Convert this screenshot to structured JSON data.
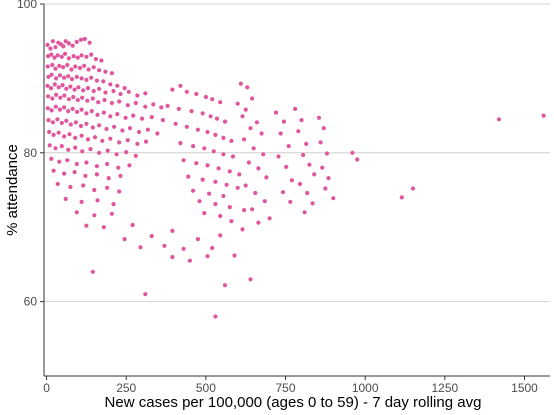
{
  "chart_data": {
    "type": "scatter",
    "xlabel": "New cases per 100,000 (ages 0 to 59) - 7 day rolling avg",
    "ylabel": "% attendance",
    "xlim": [
      -8,
      1580
    ],
    "ylim": [
      50,
      100
    ],
    "x_ticks": [
      0,
      250,
      500,
      750,
      1000,
      1250,
      1500
    ],
    "y_ticks": [
      60,
      80,
      100
    ],
    "grid": "horizontal major lines only",
    "legend": "none",
    "colors": {
      "points": "#e0559b",
      "grid": "#c8c8c8",
      "axis": "#333333",
      "background": "#ffffff"
    },
    "series": [
      {
        "points": [
          [
            3,
            94.5
          ],
          [
            12,
            94
          ],
          [
            20,
            95
          ],
          [
            28,
            94.2
          ],
          [
            37,
            94.8
          ],
          [
            45,
            94.6
          ],
          [
            53,
            94.3
          ],
          [
            60,
            95
          ],
          [
            70,
            94.7
          ],
          [
            82,
            94.4
          ],
          [
            95,
            94.9
          ],
          [
            108,
            95.2
          ],
          [
            120,
            95.3
          ],
          [
            135,
            94.8
          ],
          [
            5,
            93
          ],
          [
            15,
            93.2
          ],
          [
            25,
            92.8
          ],
          [
            35,
            93.1
          ],
          [
            48,
            92.9
          ],
          [
            58,
            93.3
          ],
          [
            70,
            92.7
          ],
          [
            85,
            93
          ],
          [
            98,
            92.8
          ],
          [
            110,
            93.1
          ],
          [
            125,
            92.9
          ],
          [
            140,
            93.2
          ],
          [
            155,
            92.6
          ],
          [
            172,
            92.4
          ],
          [
            4,
            91.6
          ],
          [
            18,
            91.8
          ],
          [
            28,
            91.3
          ],
          [
            40,
            91.7
          ],
          [
            52,
            91.5
          ],
          [
            65,
            91.8
          ],
          [
            78,
            91.2
          ],
          [
            90,
            91.6
          ],
          [
            105,
            91.4
          ],
          [
            118,
            91.7
          ],
          [
            132,
            91.2
          ],
          [
            148,
            91.5
          ],
          [
            165,
            91.1
          ],
          [
            185,
            90.9
          ],
          [
            205,
            90.7
          ],
          [
            6,
            90.2
          ],
          [
            16,
            90.5
          ],
          [
            30,
            90
          ],
          [
            42,
            90.4
          ],
          [
            55,
            90.1
          ],
          [
            68,
            90.3
          ],
          [
            80,
            89.9
          ],
          [
            95,
            90.2
          ],
          [
            110,
            90
          ],
          [
            125,
            89.8
          ],
          [
            140,
            90.1
          ],
          [
            158,
            89.7
          ],
          [
            178,
            89.6
          ],
          [
            200,
            89.2
          ],
          [
            222,
            89
          ],
          [
            245,
            88.7
          ],
          [
            3,
            89
          ],
          [
            14,
            88.7
          ],
          [
            26,
            89.2
          ],
          [
            38,
            88.8
          ],
          [
            50,
            89.1
          ],
          [
            62,
            88.6
          ],
          [
            75,
            88.9
          ],
          [
            88,
            88.5
          ],
          [
            100,
            88.8
          ],
          [
            115,
            88.4
          ],
          [
            130,
            88.7
          ],
          [
            148,
            88.3
          ],
          [
            165,
            88.6
          ],
          [
            185,
            88.1
          ],
          [
            210,
            88.3
          ],
          [
            232,
            87.9
          ],
          [
            258,
            88.2
          ],
          [
            285,
            87.7
          ],
          [
            310,
            88
          ],
          [
            5,
            87.6
          ],
          [
            18,
            87.3
          ],
          [
            30,
            87.8
          ],
          [
            43,
            87.4
          ],
          [
            56,
            87.7
          ],
          [
            70,
            87.2
          ],
          [
            84,
            87.5
          ],
          [
            98,
            87.1
          ],
          [
            112,
            87.4
          ],
          [
            128,
            87
          ],
          [
            145,
            87.3
          ],
          [
            162,
            86.8
          ],
          [
            182,
            87.1
          ],
          [
            205,
            86.7
          ],
          [
            228,
            86.9
          ],
          [
            255,
            86.4
          ],
          [
            280,
            86.7
          ],
          [
            310,
            86.2
          ],
          [
            335,
            86.5
          ],
          [
            360,
            86.1
          ],
          [
            4,
            86
          ],
          [
            16,
            85.7
          ],
          [
            29,
            86.2
          ],
          [
            42,
            85.8
          ],
          [
            55,
            86.1
          ],
          [
            68,
            85.6
          ],
          [
            82,
            85.9
          ],
          [
            96,
            85.5
          ],
          [
            110,
            85.8
          ],
          [
            125,
            85.3
          ],
          [
            142,
            85.6
          ],
          [
            160,
            85.1
          ],
          [
            180,
            85.4
          ],
          [
            200,
            84.9
          ],
          [
            222,
            85.2
          ],
          [
            248,
            84.7
          ],
          [
            272,
            85
          ],
          [
            300,
            84.6
          ],
          [
            330,
            84.8
          ],
          [
            365,
            84.4
          ],
          [
            6,
            84.4
          ],
          [
            20,
            84.1
          ],
          [
            34,
            84.5
          ],
          [
            48,
            84
          ],
          [
            62,
            84.3
          ],
          [
            76,
            83.8
          ],
          [
            92,
            84.1
          ],
          [
            108,
            83.6
          ],
          [
            125,
            83.9
          ],
          [
            145,
            83.4
          ],
          [
            165,
            83.7
          ],
          [
            188,
            83.2
          ],
          [
            212,
            83.5
          ],
          [
            238,
            83
          ],
          [
            262,
            83.3
          ],
          [
            290,
            82.8
          ],
          [
            318,
            83.1
          ],
          [
            348,
            82.6
          ],
          [
            8,
            82.8
          ],
          [
            22,
            82.4
          ],
          [
            38,
            82.7
          ],
          [
            55,
            82.2
          ],
          [
            72,
            82.5
          ],
          [
            90,
            82
          ],
          [
            110,
            82.3
          ],
          [
            130,
            81.8
          ],
          [
            152,
            82.1
          ],
          [
            175,
            81.6
          ],
          [
            200,
            81.9
          ],
          [
            228,
            81.4
          ],
          [
            255,
            81.7
          ],
          [
            285,
            81.2
          ],
          [
            312,
            81.5
          ],
          [
            10,
            81
          ],
          [
            28,
            80.6
          ],
          [
            48,
            80.9
          ],
          [
            68,
            80.4
          ],
          [
            90,
            80.7
          ],
          [
            112,
            80.2
          ],
          [
            138,
            80.5
          ],
          [
            165,
            80
          ],
          [
            192,
            80.3
          ],
          [
            220,
            79.8
          ],
          [
            250,
            80.1
          ],
          [
            280,
            79.6
          ],
          [
            15,
            79.2
          ],
          [
            40,
            78.8
          ],
          [
            65,
            79
          ],
          [
            95,
            78.5
          ],
          [
            125,
            78.7
          ],
          [
            158,
            78.2
          ],
          [
            190,
            78.5
          ],
          [
            225,
            78
          ],
          [
            260,
            78.3
          ],
          [
            22,
            77.6
          ],
          [
            55,
            77.2
          ],
          [
            88,
            77.4
          ],
          [
            122,
            76.9
          ],
          [
            158,
            77.1
          ],
          [
            195,
            76.6
          ],
          [
            232,
            76.9
          ],
          [
            35,
            75.8
          ],
          [
            75,
            75.4
          ],
          [
            115,
            75.6
          ],
          [
            150,
            75
          ],
          [
            190,
            75.3
          ],
          [
            228,
            74.8
          ],
          [
            60,
            73.8
          ],
          [
            110,
            73.4
          ],
          [
            160,
            73.6
          ],
          [
            210,
            73.1
          ],
          [
            95,
            72
          ],
          [
            150,
            71.6
          ],
          [
            205,
            71.8
          ],
          [
            125,
            70.2
          ],
          [
            180,
            70
          ],
          [
            420,
            89
          ],
          [
            395,
            88.5
          ],
          [
            440,
            88.2
          ],
          [
            470,
            87.9
          ],
          [
            500,
            87.5
          ],
          [
            520,
            87.2
          ],
          [
            545,
            86.8
          ],
          [
            380,
            86.3
          ],
          [
            415,
            85.9
          ],
          [
            455,
            85.6
          ],
          [
            490,
            85.3
          ],
          [
            515,
            84.9
          ],
          [
            535,
            84.6
          ],
          [
            560,
            84.2
          ],
          [
            405,
            83.9
          ],
          [
            440,
            83.5
          ],
          [
            475,
            83.1
          ],
          [
            505,
            82.8
          ],
          [
            530,
            82.4
          ],
          [
            555,
            82
          ],
          [
            580,
            81.6
          ],
          [
            420,
            81.3
          ],
          [
            460,
            80.9
          ],
          [
            495,
            80.6
          ],
          [
            525,
            80.2
          ],
          [
            555,
            79.8
          ],
          [
            585,
            79.5
          ],
          [
            430,
            79
          ],
          [
            470,
            78.6
          ],
          [
            505,
            78.3
          ],
          [
            540,
            77.9
          ],
          [
            575,
            77.5
          ],
          [
            605,
            77.1
          ],
          [
            445,
            76.8
          ],
          [
            490,
            76.4
          ],
          [
            530,
            76.1
          ],
          [
            565,
            75.7
          ],
          [
            600,
            75.3
          ],
          [
            460,
            74.9
          ],
          [
            510,
            74.5
          ],
          [
            555,
            74.2
          ],
          [
            480,
            73.5
          ],
          [
            530,
            73.1
          ],
          [
            575,
            72.7
          ],
          [
            620,
            72.3
          ],
          [
            495,
            71.9
          ],
          [
            545,
            71.5
          ],
          [
            610,
            89.3
          ],
          [
            630,
            88.8
          ],
          [
            645,
            87.3
          ],
          [
            600,
            86.6
          ],
          [
            625,
            85.8
          ],
          [
            615,
            84.9
          ],
          [
            660,
            84.1
          ],
          [
            640,
            83.3
          ],
          [
            675,
            82.6
          ],
          [
            620,
            81.8
          ],
          [
            650,
            80.6
          ],
          [
            680,
            79.8
          ],
          [
            635,
            78.7
          ],
          [
            665,
            77.9
          ],
          [
            690,
            76.7
          ],
          [
            625,
            75.6
          ],
          [
            655,
            74.6
          ],
          [
            685,
            73.5
          ],
          [
            645,
            72.4
          ],
          [
            720,
            85.4
          ],
          [
            745,
            84.2
          ],
          [
            735,
            82.6
          ],
          [
            760,
            80.9
          ],
          [
            728,
            79.5
          ],
          [
            752,
            78.1
          ],
          [
            770,
            76.3
          ],
          [
            742,
            74.7
          ],
          [
            765,
            73.4
          ],
          [
            780,
            85.9
          ],
          [
            800,
            84.4
          ],
          [
            790,
            82.9
          ],
          [
            815,
            81.2
          ],
          [
            805,
            79.7
          ],
          [
            825,
            78.4
          ],
          [
            840,
            77.1
          ],
          [
            795,
            75.8
          ],
          [
            818,
            74.6
          ],
          [
            835,
            73.2
          ],
          [
            810,
            72
          ],
          [
            855,
            84.7
          ],
          [
            870,
            83.3
          ],
          [
            860,
            81.4
          ],
          [
            880,
            79.9
          ],
          [
            865,
            78
          ],
          [
            885,
            76.6
          ],
          [
            875,
            75.2
          ],
          [
            900,
            73.9
          ],
          [
            960,
            80
          ],
          [
            975,
            79.1
          ],
          [
            1115,
            74
          ],
          [
            1150,
            75.2
          ],
          [
            1560,
            85
          ],
          [
            1420,
            84.5
          ],
          [
            145,
            64
          ],
          [
            310,
            61
          ],
          [
            530,
            58
          ],
          [
            560,
            62.2
          ],
          [
            450,
            65.5
          ],
          [
            395,
            66
          ],
          [
            520,
            67.2
          ],
          [
            640,
            63
          ],
          [
            330,
            68.8
          ],
          [
            270,
            70.3
          ],
          [
            580,
            70.8
          ],
          [
            700,
            71.2
          ],
          [
            395,
            69.5
          ],
          [
            475,
            68.4
          ],
          [
            545,
            68.9
          ],
          [
            615,
            69.7
          ],
          [
            665,
            70.6
          ],
          [
            430,
            67.1
          ],
          [
            505,
            66.1
          ],
          [
            590,
            66.2
          ],
          [
            295,
            67.3
          ],
          [
            370,
            67.5
          ],
          [
            245,
            68.4
          ]
        ]
      }
    ]
  }
}
